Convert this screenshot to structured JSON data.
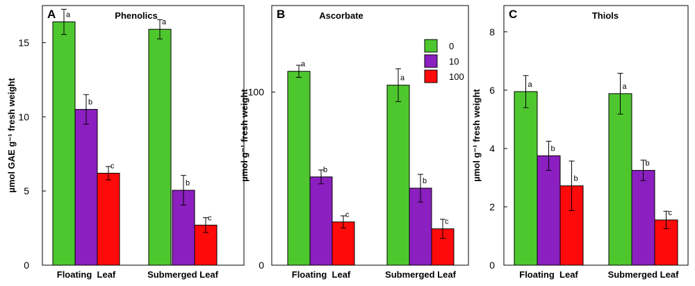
{
  "colors": {
    "s0": "#4ec72f",
    "s10": "#8b1fbf",
    "s100": "#ff0a0a"
  },
  "legend": {
    "items": [
      "0",
      "10",
      "100"
    ]
  },
  "chart_data": [
    {
      "type": "bar",
      "panel": "A",
      "title": "Phenolics",
      "ylabel": "µmol GAE g⁻¹ fresh weight",
      "categories": [
        "Floating  Leaf",
        "Submerged Leaf"
      ],
      "ylim": [
        0,
        17.5
      ],
      "yticks": [
        0,
        5,
        10,
        15
      ],
      "series": [
        {
          "name": "0",
          "values": [
            16.4,
            15.9
          ],
          "errors": [
            0.85,
            0.65
          ],
          "labels": [
            "a",
            "a"
          ]
        },
        {
          "name": "10",
          "values": [
            10.5,
            5.05
          ],
          "errors": [
            1.0,
            1.0
          ],
          "labels": [
            "b",
            "b"
          ]
        },
        {
          "name": "100",
          "values": [
            6.2,
            2.7
          ],
          "errors": [
            0.45,
            0.5
          ],
          "labels": [
            "c",
            "c"
          ]
        }
      ]
    },
    {
      "type": "bar",
      "panel": "B",
      "title": "Ascorbate",
      "ylabel": "µmol g⁻¹  fresh weight",
      "categories": [
        "Floating  Leaf",
        "Submerged Leaf"
      ],
      "ylim": [
        0,
        150
      ],
      "yticks": [
        0,
        100
      ],
      "series": [
        {
          "name": "0",
          "values": [
            112,
            104
          ],
          "errors": [
            3.5,
            9.5
          ],
          "labels": [
            "a",
            "a"
          ]
        },
        {
          "name": "10",
          "values": [
            51,
            44.5
          ],
          "errors": [
            4,
            8
          ],
          "labels": [
            "b",
            "b"
          ]
        },
        {
          "name": "100",
          "values": [
            25,
            21
          ],
          "errors": [
            3.5,
            5.5
          ],
          "labels": [
            "c",
            "c"
          ]
        }
      ]
    },
    {
      "type": "bar",
      "panel": "C",
      "title": "Thiols",
      "ylabel": "µmol g⁻¹ fresh weight",
      "categories": [
        "Floating  Leaf",
        "Submerged Leaf"
      ],
      "ylim": [
        0,
        8.9
      ],
      "yticks": [
        0,
        2,
        4,
        6,
        8
      ],
      "series": [
        {
          "name": "0",
          "values": [
            5.95,
            5.88
          ],
          "errors": [
            0.55,
            0.7
          ],
          "labels": [
            "a",
            "a"
          ]
        },
        {
          "name": "10",
          "values": [
            3.75,
            3.25
          ],
          "errors": [
            0.5,
            0.35
          ],
          "labels": [
            "b",
            "b"
          ]
        },
        {
          "name": "100",
          "values": [
            2.72,
            1.55
          ],
          "errors": [
            0.85,
            0.3
          ],
          "labels": [
            "b",
            "c"
          ]
        }
      ]
    }
  ]
}
